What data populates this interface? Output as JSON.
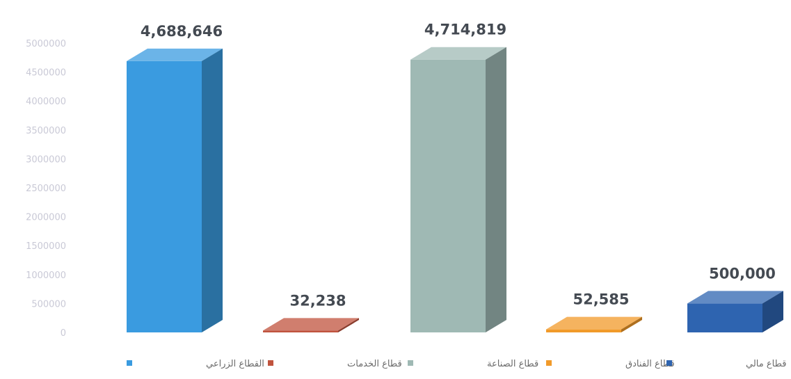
{
  "chart_data": {
    "type": "bar",
    "categories": [
      "القطاع الزراعي",
      "قطاع الخدمات",
      "قطاع الصناعة",
      "قطاع الفنادق",
      "قطاع مالي"
    ],
    "values": [
      4688646,
      32238,
      4714819,
      52585,
      500000
    ],
    "data_labels": [
      "4,688,646",
      "32,238",
      "4,714,819",
      "52,585",
      "500,000"
    ],
    "colors": [
      "#3a9be0",
      "#c0533e",
      "#9fb9b4",
      "#f19a2a",
      "#2e64b0"
    ],
    "yticks": [
      "0",
      "500000",
      "1000000",
      "1500000",
      "2000000",
      "2500000",
      "3000000",
      "3500000",
      "4000000",
      "4500000",
      "5000000"
    ],
    "ylim": [
      0,
      5000000
    ],
    "grid": false,
    "legend_position": "bottom"
  }
}
